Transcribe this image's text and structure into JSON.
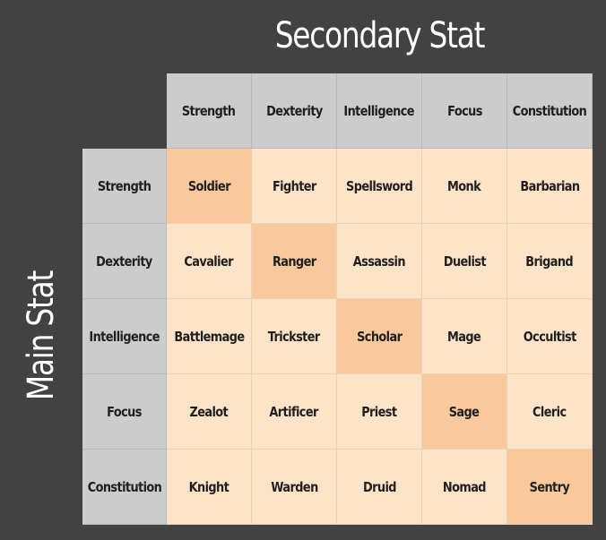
{
  "titles": {
    "secondary": "Secondary Stat",
    "main": "Main Stat"
  },
  "colors": {
    "background": "#424242",
    "header_cell": "#cccccc",
    "class_cell": "#fde4c9",
    "diagonal_cell": "#f9c99d"
  },
  "column_headers": [
    "Strength",
    "Dexterity",
    "Intelligence",
    "Focus",
    "Constitution"
  ],
  "row_headers": [
    "Strength",
    "Dexterity",
    "Intelligence",
    "Focus",
    "Constitution"
  ],
  "cells": [
    [
      "Soldier",
      "Fighter",
      "Spellsword",
      "Monk",
      "Barbarian"
    ],
    [
      "Cavalier",
      "Ranger",
      "Assassin",
      "Duelist",
      "Brigand"
    ],
    [
      "Battlemage",
      "Trickster",
      "Scholar",
      "Mage",
      "Occultist"
    ],
    [
      "Zealot",
      "Artificer",
      "Priest",
      "Sage",
      "Cleric"
    ],
    [
      "Knight",
      "Warden",
      "Druid",
      "Nomad",
      "Sentry"
    ]
  ]
}
